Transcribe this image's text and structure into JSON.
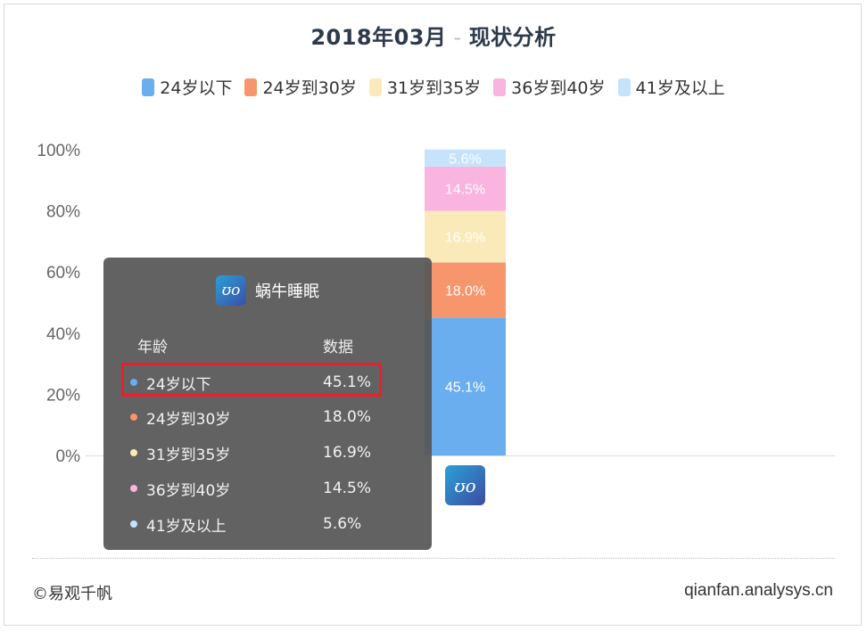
{
  "title": {
    "date": "2018年03月",
    "sep": "-",
    "text": "现状分析"
  },
  "legend": [
    {
      "label": "24岁以下",
      "color": "#6aaeef"
    },
    {
      "label": "24岁到30岁",
      "color": "#f7956c"
    },
    {
      "label": "31岁到35岁",
      "color": "#fbeab9"
    },
    {
      "label": "36岁到40岁",
      "color": "#f9b4df"
    },
    {
      "label": "41岁及以上",
      "color": "#c5e3fb"
    }
  ],
  "chart_data": {
    "type": "bar",
    "stacked": true,
    "categories": [
      "蜗牛睡眠"
    ],
    "yticks": [
      "0%",
      "20%",
      "40%",
      "60%",
      "80%",
      "100%"
    ],
    "ylim": [
      0,
      100
    ],
    "series": [
      {
        "name": "24岁以下",
        "values": [
          45.1
        ],
        "color": "#6aaeef",
        "label": "45.1%"
      },
      {
        "name": "24岁到30岁",
        "values": [
          18.0
        ],
        "color": "#f7956c",
        "label": "18.0%"
      },
      {
        "name": "31岁到35岁",
        "values": [
          16.9
        ],
        "color": "#fbeab9",
        "label": "16.9%"
      },
      {
        "name": "36岁到40岁",
        "values": [
          14.5
        ],
        "color": "#f9b4df",
        "label": "14.5%"
      },
      {
        "name": "41岁及以上",
        "values": [
          5.6
        ],
        "color": "#c5e3fb",
        "label": "5.6%"
      }
    ]
  },
  "tooltip": {
    "app_name": "蜗牛睡眠",
    "logo_text": "ʊo",
    "col_age": "年龄",
    "col_data": "数据",
    "rows": [
      {
        "label": "24岁以下",
        "value": "45.1%",
        "color": "#6aaeef"
      },
      {
        "label": "24岁到30岁",
        "value": "18.0%",
        "color": "#f7956c"
      },
      {
        "label": "31岁到35岁",
        "value": "16.9%",
        "color": "#fbeab9"
      },
      {
        "label": "36岁到40岁",
        "value": "14.5%",
        "color": "#f9b4df"
      },
      {
        "label": "41岁及以上",
        "value": "5.6%",
        "color": "#c5e3fb"
      }
    ]
  },
  "axis_logo_text": "ʊo",
  "footer": {
    "left": "©易观千帆",
    "right": "qianfan.analysys.cn"
  }
}
